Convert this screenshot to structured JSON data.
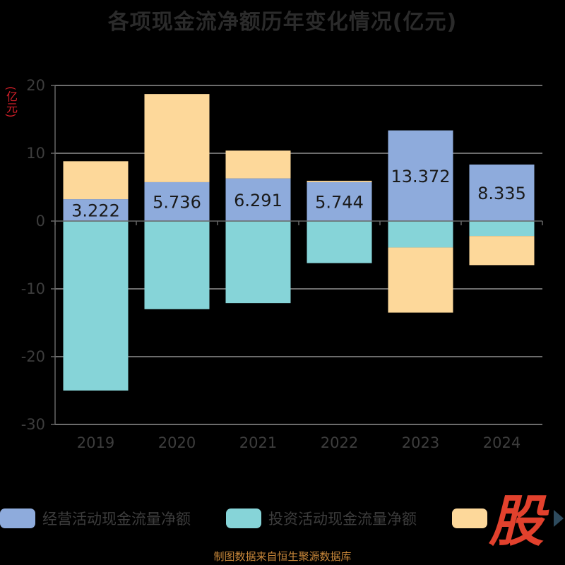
{
  "page": {
    "title": "各项现金流净额历年变化情况(亿元)",
    "y_unit": "(亿元)",
    "source": "制图数据来自恒生聚源数据库",
    "brand": "股"
  },
  "colors": {
    "operating": "#8eabdc",
    "investing": "#86d4d8",
    "financing": "#fdd89a",
    "grid": "#d9d9d9",
    "axis": "#666666"
  },
  "chart_data": {
    "type": "bar",
    "stacked": true,
    "title": "各项现金流净额历年变化情况(亿元)",
    "ylabel": "(亿元)",
    "ylim": [
      -30,
      20
    ],
    "yticks": [
      "20",
      "10",
      "0",
      "-10",
      "-20",
      "-30"
    ],
    "categories": [
      "2019",
      "2020",
      "2021",
      "2022",
      "2023",
      "2024"
    ],
    "series": [
      {
        "name": "经营活动现金流量净额",
        "values": [
          3.222,
          5.736,
          6.291,
          5.744,
          13.372,
          8.335
        ]
      },
      {
        "name": "投资活动现金流量净额",
        "values": [
          -25.0,
          -13.0,
          -12.1,
          -6.2,
          -3.9,
          -2.2
        ]
      },
      {
        "name": "",
        "values": [
          5.6,
          13.0,
          4.1,
          0.2,
          -9.6,
          -4.3
        ]
      }
    ],
    "data_labels": [
      "3.222",
      "5.736",
      "6.291",
      "5.744",
      "13.372",
      "8.335"
    ],
    "legend_position": "bottom",
    "grid": true
  }
}
